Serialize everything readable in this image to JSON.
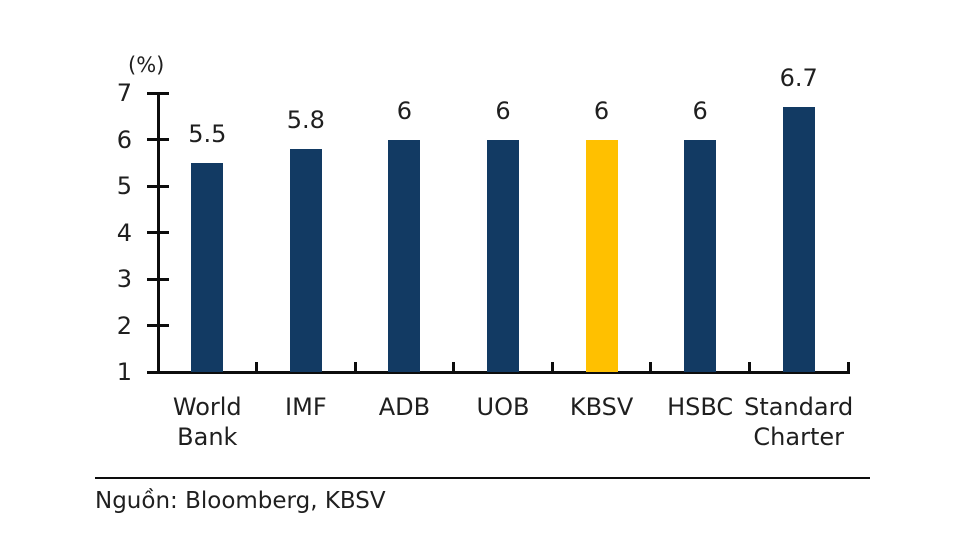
{
  "chart_data": {
    "type": "bar",
    "title": "",
    "unit_label": "(%)",
    "categories": [
      "World\nBank",
      "IMF",
      "ADB",
      "UOB",
      "KBSV",
      "HSBC",
      "Standard\nCharter"
    ],
    "values": [
      5.5,
      5.8,
      6,
      6,
      6,
      6,
      6.7
    ],
    "value_labels": [
      "5.5",
      "5.8",
      "6",
      "6",
      "6",
      "6",
      "6.7"
    ],
    "highlight_index": 4,
    "bar_color": "#123A63",
    "highlight_color": "#FFC000",
    "ylim": [
      1,
      7
    ],
    "yticks": [
      1,
      2,
      3,
      4,
      5,
      6,
      7
    ],
    "grid": false,
    "legend": false,
    "source": "Nguồn: Bloomberg, KBSV"
  }
}
